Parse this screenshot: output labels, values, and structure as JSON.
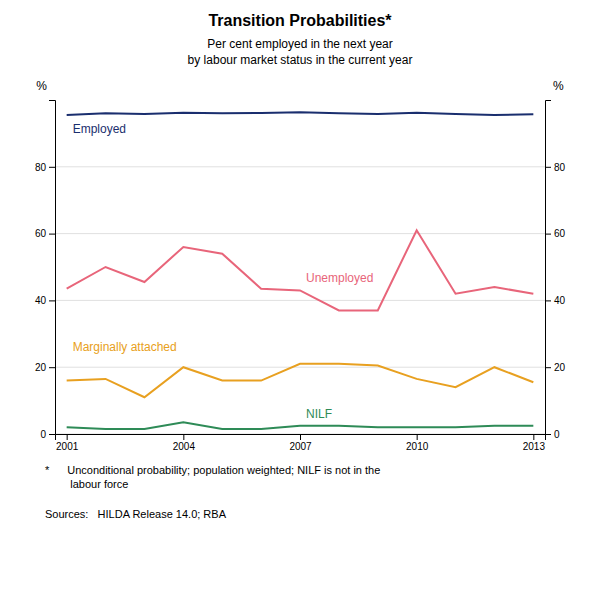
{
  "chart_data": {
    "type": "line",
    "title": "Transition Probabilities*",
    "subtitle": "Per cent employed in the next year\nby labour market status in the current year",
    "ylabel": "%",
    "y2label": "%",
    "x": [
      2001,
      2002,
      2003,
      2004,
      2005,
      2006,
      2007,
      2008,
      2009,
      2010,
      2011,
      2012,
      2013
    ],
    "series": [
      {
        "name": "Employed",
        "color": "#1a2e6e",
        "values": [
          95.5,
          96.0,
          95.8,
          96.2,
          96.0,
          96.1,
          96.3,
          96.0,
          95.8,
          96.2,
          95.8,
          95.5,
          95.7
        ]
      },
      {
        "name": "Unemployed",
        "color": "#e8657a",
        "values": [
          43.5,
          50.0,
          45.5,
          56.0,
          54.0,
          43.5,
          43.0,
          37.0,
          37.0,
          61.0,
          42.0,
          44.0,
          42.0
        ]
      },
      {
        "name": "Marginally attached",
        "color": "#e8a020",
        "values": [
          16.0,
          16.5,
          11.0,
          20.0,
          16.0,
          16.0,
          21.0,
          21.0,
          20.5,
          16.5,
          14.0,
          20.0,
          15.5
        ]
      },
      {
        "name": "NILF",
        "color": "#2e8b57",
        "values": [
          2.0,
          1.5,
          1.5,
          3.5,
          1.5,
          1.5,
          2.5,
          2.5,
          2.0,
          2.0,
          2.0,
          2.5,
          2.5
        ]
      }
    ],
    "xlim": [
      2000.7,
      2013.3
    ],
    "xticks": [
      2001,
      2004,
      2007,
      2010,
      2013
    ],
    "ylim": [
      0,
      100
    ],
    "yticks": [
      0,
      20,
      40,
      60,
      80
    ],
    "y2lim": [
      0,
      100
    ],
    "y2ticks": [
      0,
      20,
      40,
      60,
      80
    ],
    "grid": true,
    "annotations": [
      "*",
      "    Unconditional probability; population weighted; NILF is not in the\n     labour force",
      "Sources:   HILDA Release 14.0; RBA"
    ]
  }
}
